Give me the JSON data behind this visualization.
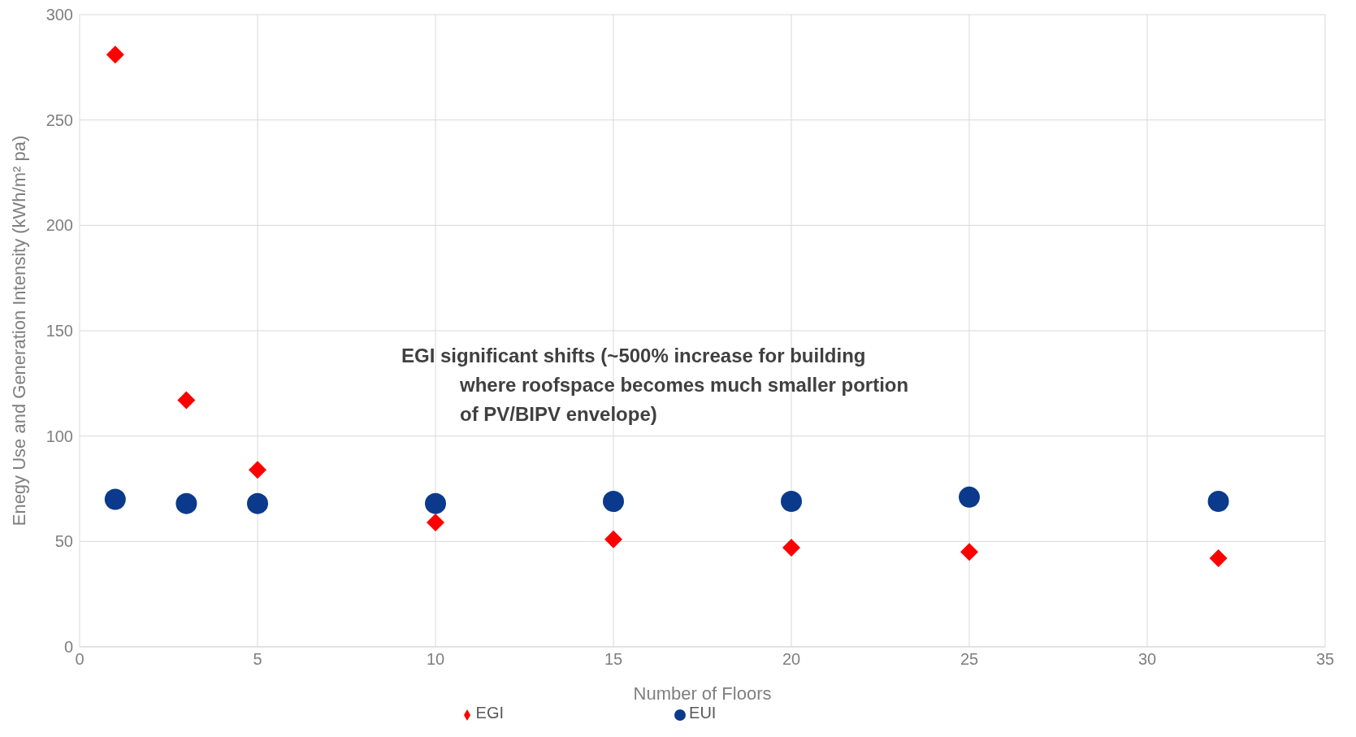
{
  "chart_data": {
    "type": "scatter",
    "xlabel": "Number of Floors",
    "ylabel": "Enegy Use and Generation Intensity (kWh/m² pa)",
    "x": [
      1,
      3,
      5,
      10,
      15,
      20,
      25,
      32
    ],
    "series": [
      {
        "name": "EUI",
        "color": "#0b3a8c",
        "marker": "circle",
        "values": [
          70,
          68,
          68,
          68,
          69,
          69,
          71,
          69
        ]
      },
      {
        "name": "EGI",
        "color": "#ff0000",
        "marker": "diamond",
        "values": [
          281,
          117,
          84,
          59,
          51,
          47,
          45,
          42
        ]
      }
    ],
    "xlim": [
      0,
      35
    ],
    "xticks": [
      0,
      5,
      10,
      15,
      20,
      25,
      30,
      35
    ],
    "ylim": [
      0,
      300
    ],
    "yticks": [
      0,
      50,
      100,
      150,
      200,
      250,
      300
    ],
    "grid": true,
    "legend": "bottom",
    "annotations": [
      "EGI significant shifts (~500% increase for building\nwhere roofspace becomes much smaller portion\nof PV/BIPV envelope)"
    ]
  }
}
